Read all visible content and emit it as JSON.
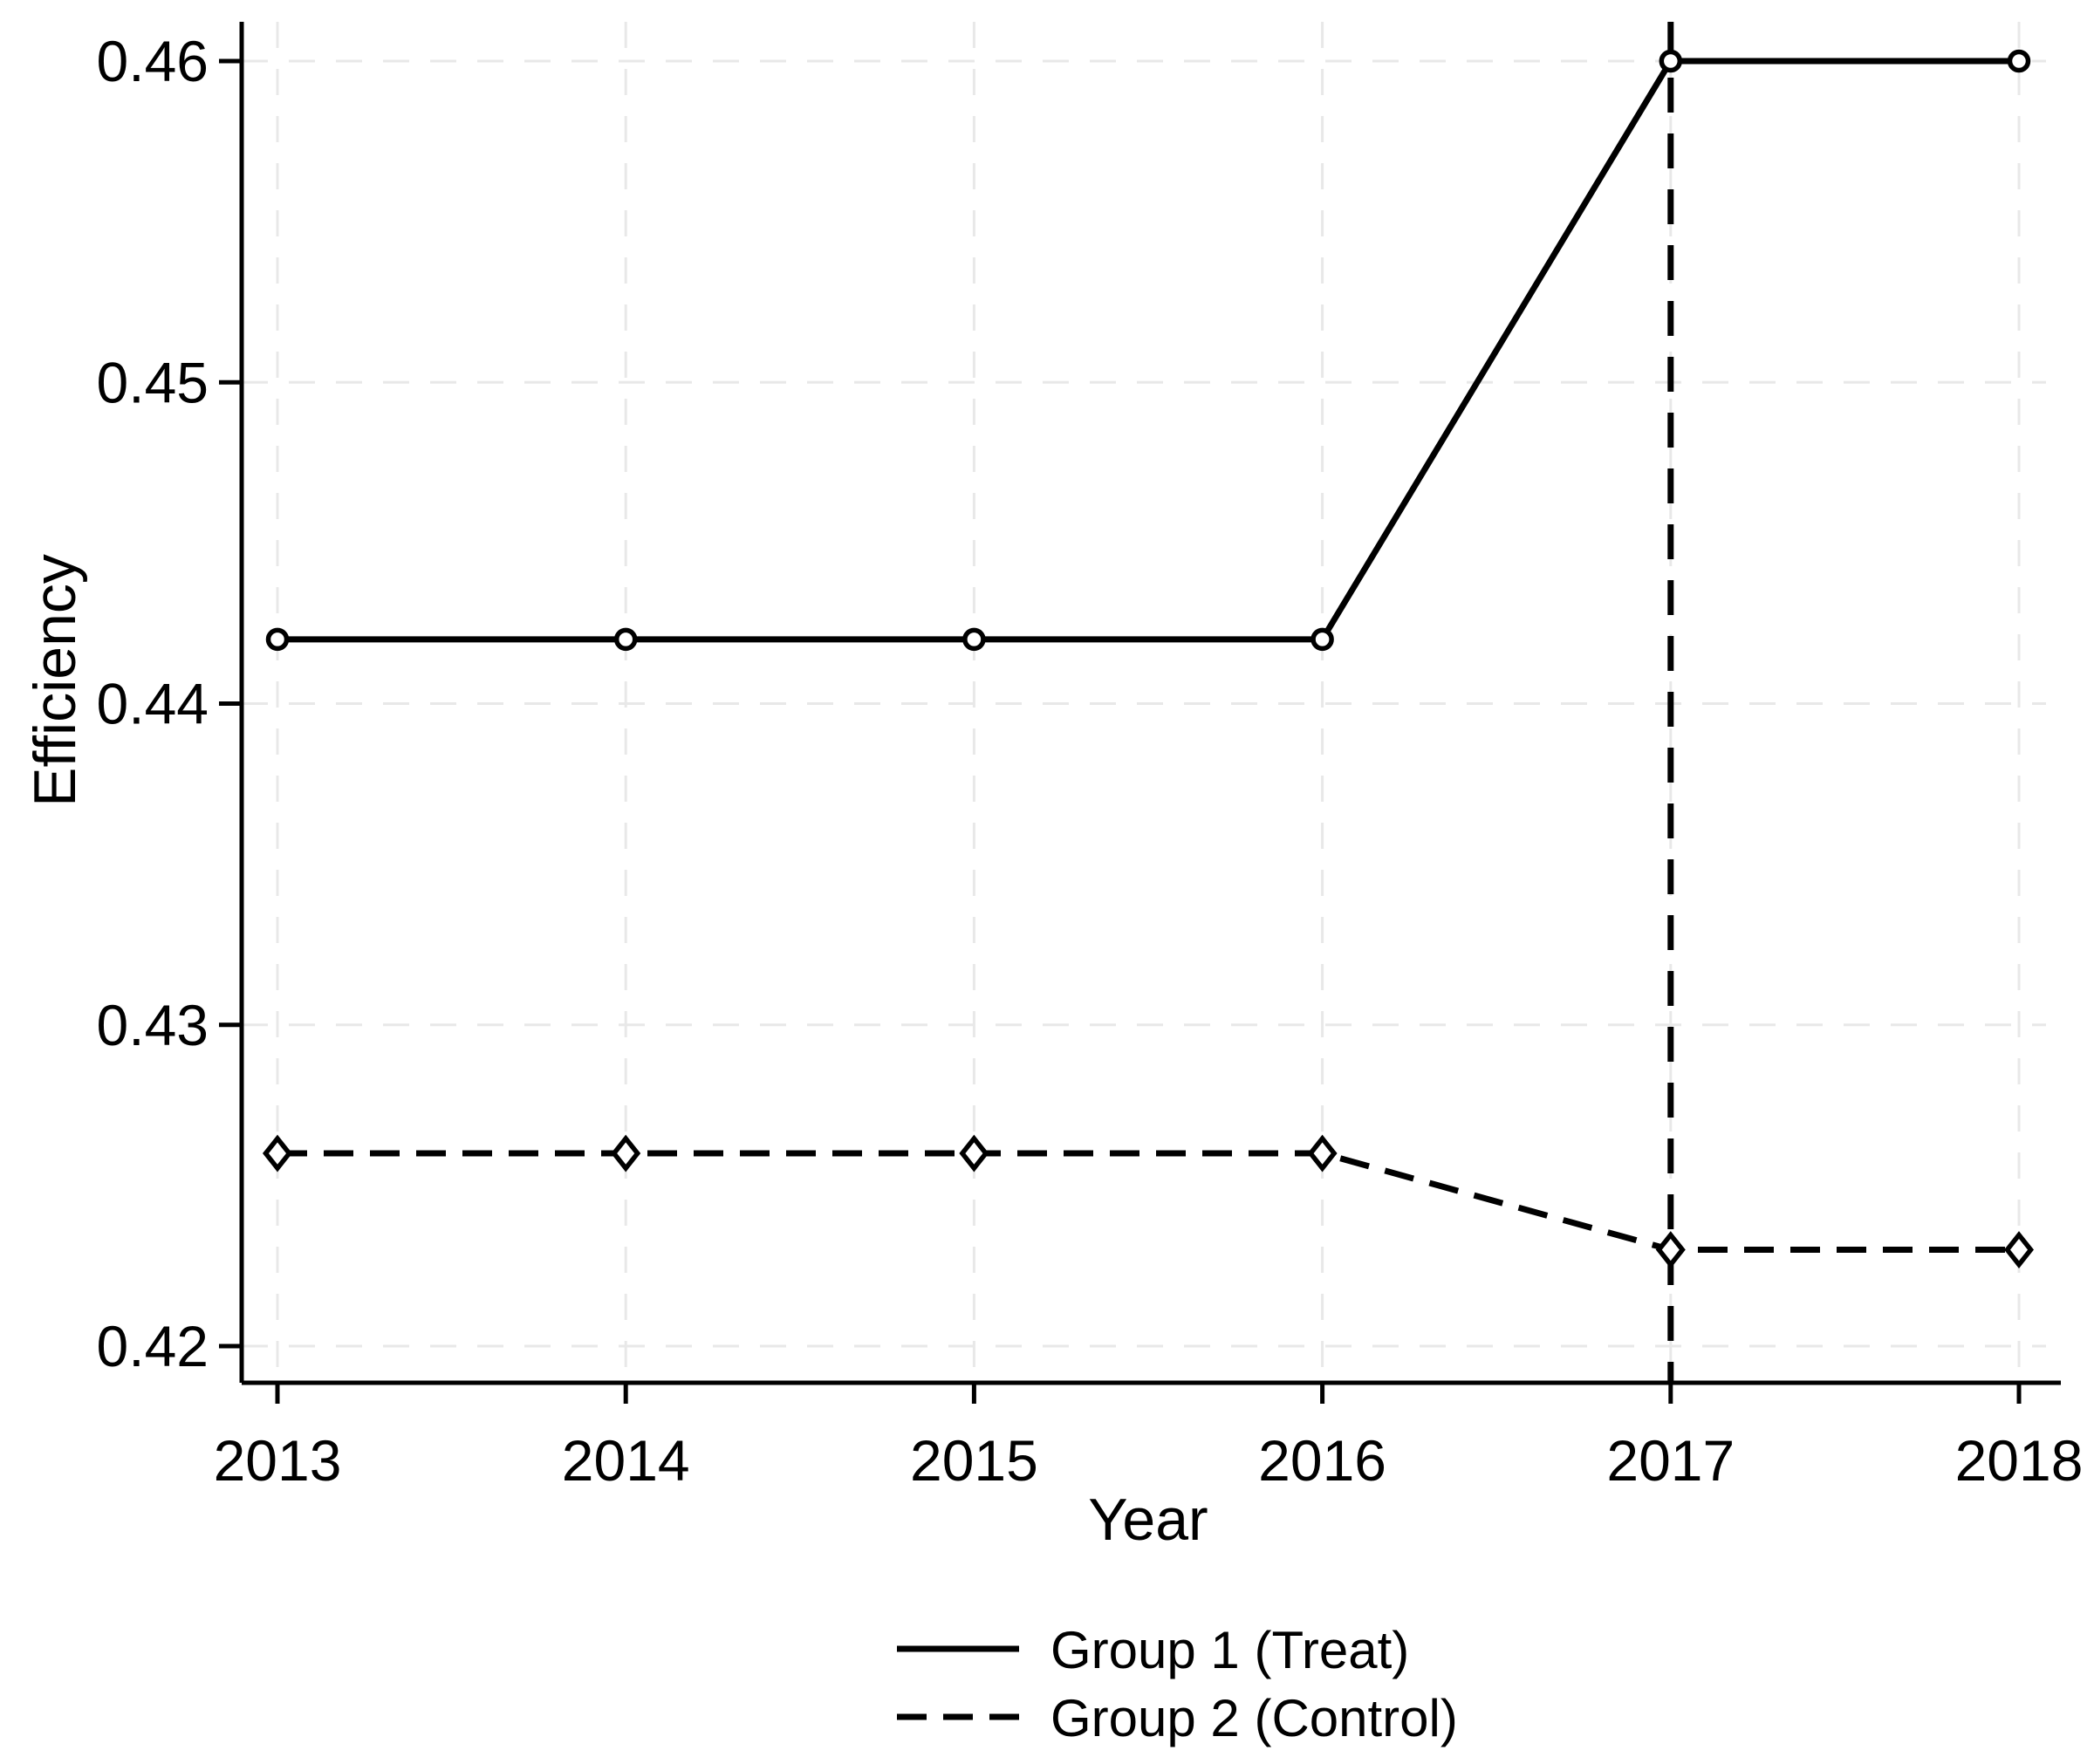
{
  "figure": {
    "background": "#ffffff"
  },
  "chart_data": {
    "type": "line",
    "title": "",
    "xlabel": "Year",
    "ylabel": "Efficiency",
    "x": [
      2013,
      2014,
      2015,
      2016,
      2017,
      2018
    ],
    "xtick_labels": [
      "2013",
      "2014",
      "2015",
      "2016",
      "2017",
      "2018"
    ],
    "yticks": [
      0.42,
      0.43,
      0.44,
      0.45,
      0.46
    ],
    "ytick_labels": [
      "0.42",
      "0.43",
      "0.44",
      "0.45",
      "0.46"
    ],
    "ylim": [
      0.4189,
      0.4612
    ],
    "xlim": [
      2012.9,
      2018.12
    ],
    "grid": {
      "show": true,
      "style": "dashed",
      "color": "#e8e8e8"
    },
    "series": [
      {
        "name": "Group 1 (Treat)",
        "line_style": "solid",
        "marker": "circle",
        "color": "#000000",
        "values": [
          0.442,
          0.442,
          0.442,
          0.442,
          0.46,
          0.46
        ]
      },
      {
        "name": "Group 2 (Control)",
        "line_style": "dashed",
        "marker": "diamond",
        "color": "#000000",
        "values": [
          0.426,
          0.426,
          0.426,
          0.426,
          0.423,
          0.423
        ]
      }
    ],
    "event_line": {
      "x": 2017,
      "style": "dashed",
      "color": "#000000"
    },
    "legend_position": "bottom-center"
  }
}
